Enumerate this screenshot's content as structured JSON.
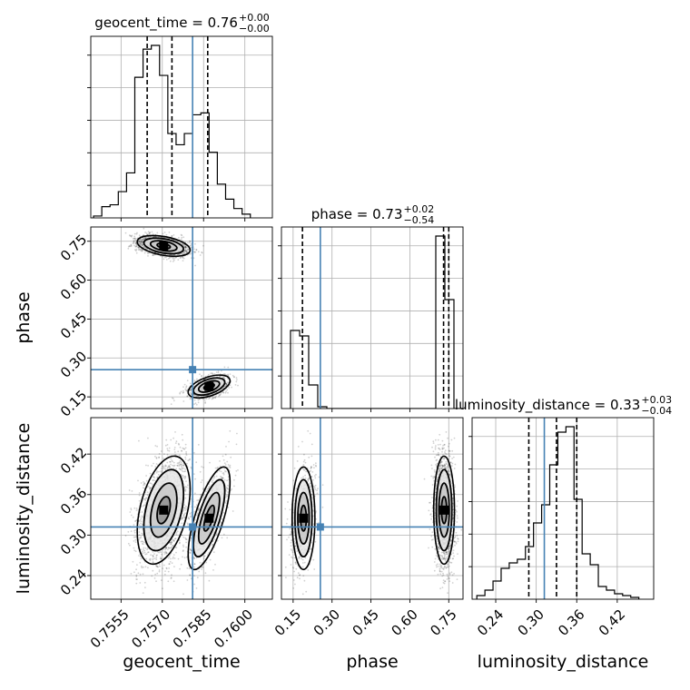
{
  "chart_data": {
    "type": "corner",
    "parameters": [
      "geocent_time",
      "phase",
      "luminosity_distance"
    ],
    "grid": true,
    "truth_color": "#4682b4",
    "titles": [
      {
        "name": "geocent_time",
        "median": "0.76",
        "plus": "+0.00",
        "minus": "−0.00"
      },
      {
        "name": "phase",
        "median": "0.73",
        "plus": "+0.02",
        "minus": "−0.54"
      },
      {
        "name": "luminosity_distance",
        "median": "0.33",
        "plus": "+0.03",
        "minus": "−0.04"
      }
    ],
    "axis_labels": {
      "x": [
        "geocent_time",
        "phase",
        "luminosity_distance"
      ],
      "y": [
        "phase",
        "luminosity_distance"
      ]
    },
    "axes": {
      "geocent_time": {
        "range": [
          0.7544,
          0.761
        ],
        "ticks": [
          "0.7555",
          "0.7570",
          "0.7585",
          "0.7600"
        ],
        "tick_values": [
          0.7555,
          0.757,
          0.7585,
          0.76
        ]
      },
      "phase": {
        "range": [
          0.105,
          0.805
        ],
        "ticks": [
          "0.15",
          "0.30",
          "0.45",
          "0.60",
          "0.75"
        ],
        "tick_values": [
          0.15,
          0.3,
          0.45,
          0.6,
          0.75
        ]
      },
      "luminosity_distance": {
        "range": [
          0.205,
          0.474
        ],
        "ticks": [
          "0.24",
          "0.30",
          "0.36",
          "0.42"
        ],
        "tick_values": [
          0.24,
          0.3,
          0.36,
          0.42
        ]
      }
    },
    "truths": {
      "geocent_time": 0.7581,
      "phase": 0.255,
      "luminosity_distance": 0.312
    },
    "quantiles": {
      "geocent_time": [
        0.75645,
        0.75735,
        0.75865
      ],
      "phase": [
        0.186,
        0.73,
        0.75
      ],
      "luminosity_distance": [
        0.289,
        0.33,
        0.36
      ]
    },
    "histograms": {
      "geocent_time": {
        "edges": [
          0.7545,
          0.7548,
          0.7551,
          0.7554,
          0.7557,
          0.756,
          0.7563,
          0.7566,
          0.7569,
          0.7572,
          0.7575,
          0.7578,
          0.7581,
          0.7584,
          0.7587,
          0.759,
          0.7593,
          0.7596,
          0.7599,
          0.7602
        ],
        "counts": [
          0.01,
          0.06,
          0.07,
          0.14,
          0.24,
          0.75,
          0.9,
          0.92,
          0.76,
          0.45,
          0.39,
          0.45,
          0.55,
          0.56,
          0.35,
          0.18,
          0.1,
          0.05,
          0.02
        ]
      },
      "phase": {
        "edges": [
          0.14,
          0.175,
          0.21,
          0.245,
          0.28,
          0.315,
          0.7,
          0.735,
          0.77,
          0.805
        ],
        "counts": [
          0.43,
          0.4,
          0.13,
          0.01,
          0.0,
          0.0,
          0.95,
          0.6,
          0.0
        ]
      },
      "luminosity_distance": {
        "edges": [
          0.212,
          0.224,
          0.236,
          0.248,
          0.26,
          0.272,
          0.284,
          0.296,
          0.308,
          0.32,
          0.332,
          0.344,
          0.356,
          0.368,
          0.38,
          0.392,
          0.404,
          0.416,
          0.428,
          0.44,
          0.452
        ],
        "counts": [
          0.02,
          0.05,
          0.1,
          0.17,
          0.2,
          0.22,
          0.29,
          0.42,
          0.52,
          0.74,
          0.92,
          0.95,
          0.55,
          0.25,
          0.19,
          0.07,
          0.05,
          0.03,
          0.02,
          0.01
        ]
      }
    },
    "clusters": [
      {
        "geocent_time": 0.75705,
        "phase": 0.732,
        "luminosity_distance": 0.337,
        "sx": 0.00048,
        "sphase": 0.02,
        "sd": 0.04,
        "corr_time_phase": -0.4,
        "corr_time_dist": 0.4,
        "weight": 0.68
      },
      {
        "geocent_time": 0.7587,
        "phase": 0.19,
        "luminosity_distance": 0.325,
        "sx": 0.00038,
        "sphase": 0.022,
        "sd": 0.038,
        "corr_time_phase": 0.5,
        "corr_time_dist": 0.7,
        "weight": 0.32
      }
    ]
  }
}
